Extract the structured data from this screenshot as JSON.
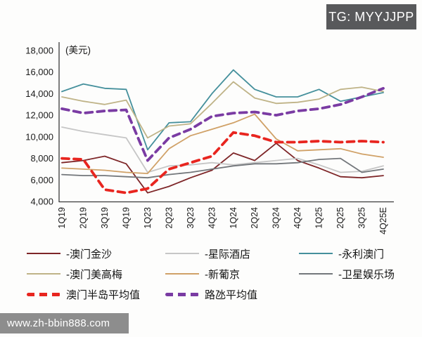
{
  "badge": {
    "text": "TG: MYYJJPP"
  },
  "watermark": {
    "text": "www.zh-bbin888.com"
  },
  "chart_data": {
    "type": "line",
    "title": "",
    "unit_label": "(美元)",
    "xlabel": "",
    "ylabel": "",
    "ylim": [
      4000,
      18000
    ],
    "y_tick_step": 2000,
    "y_tick_labels": [
      "4,000",
      "6,000",
      "8,000",
      "10,000",
      "12,000",
      "14,000",
      "16,000",
      "18,000"
    ],
    "grid": false,
    "legend_position": "bottom",
    "categories": [
      "1Q19",
      "2Q19",
      "3Q19",
      "4Q19",
      "1Q23",
      "2Q23",
      "3Q23",
      "4Q23",
      "1Q24",
      "2Q24",
      "3Q24",
      "4Q24",
      "1Q25",
      "2Q25",
      "3Q25",
      "4Q25E"
    ],
    "series": [
      {
        "name": "-澳门金沙",
        "key": "sands",
        "color": "#7e2628",
        "style": "solid",
        "values": [
          7600,
          7800,
          8200,
          7500,
          4800,
          5400,
          6200,
          6900,
          8500,
          7800,
          9400,
          7800,
          7100,
          6300,
          6200,
          6400
        ]
      },
      {
        "name": "-星际酒店",
        "key": "starworld",
        "color": "#c6c6c6",
        "style": "solid",
        "values": [
          10900,
          10500,
          10200,
          9900,
          6700,
          7300,
          7400,
          7600,
          7400,
          7600,
          7800,
          8000,
          7400,
          6700,
          6800,
          7300
        ]
      },
      {
        "name": "-永利澳门",
        "key": "wynn",
        "color": "#45909c",
        "style": "solid",
        "values": [
          14200,
          14900,
          14500,
          14400,
          8800,
          11300,
          11400,
          14000,
          16200,
          14400,
          13700,
          13700,
          14400,
          13300,
          13700,
          14100
        ]
      },
      {
        "name": "-澳门美高梅",
        "key": "mgm",
        "color": "#bfb387",
        "style": "solid",
        "values": [
          13700,
          13300,
          13000,
          13400,
          9900,
          11000,
          11200,
          13100,
          15100,
          13600,
          13100,
          13200,
          13500,
          14400,
          14600,
          14200
        ]
      },
      {
        "name": "-新葡京",
        "key": "lisboa",
        "color": "#d0a167",
        "style": "solid",
        "values": [
          7100,
          7000,
          6900,
          6700,
          6600,
          8900,
          10100,
          10700,
          11300,
          12100,
          9800,
          8700,
          8800,
          8900,
          8400,
          8100
        ]
      },
      {
        "name": "-卫星娱乐场",
        "key": "satellite",
        "color": "#73777b",
        "style": "solid",
        "values": [
          6500,
          6400,
          6400,
          6300,
          6200,
          6500,
          6700,
          7000,
          7300,
          7500,
          7500,
          7600,
          7900,
          8000,
          6700,
          7000
        ]
      },
      {
        "name": "澳门半岛平均值",
        "key": "peninsula",
        "color": "#e8251f",
        "style": "dashed",
        "values": [
          8000,
          7900,
          5100,
          4800,
          5200,
          7000,
          7600,
          8200,
          10400,
          10100,
          9500,
          9500,
          9600,
          9500,
          9600,
          9500
        ]
      },
      {
        "name": "路氹平均值",
        "key": "cotai",
        "color": "#7a3ba3",
        "style": "dashed",
        "values": [
          12600,
          12200,
          12400,
          12500,
          7800,
          9900,
          10700,
          11900,
          12200,
          12300,
          12000,
          12400,
          12600,
          13000,
          13700,
          14500
        ]
      }
    ]
  }
}
